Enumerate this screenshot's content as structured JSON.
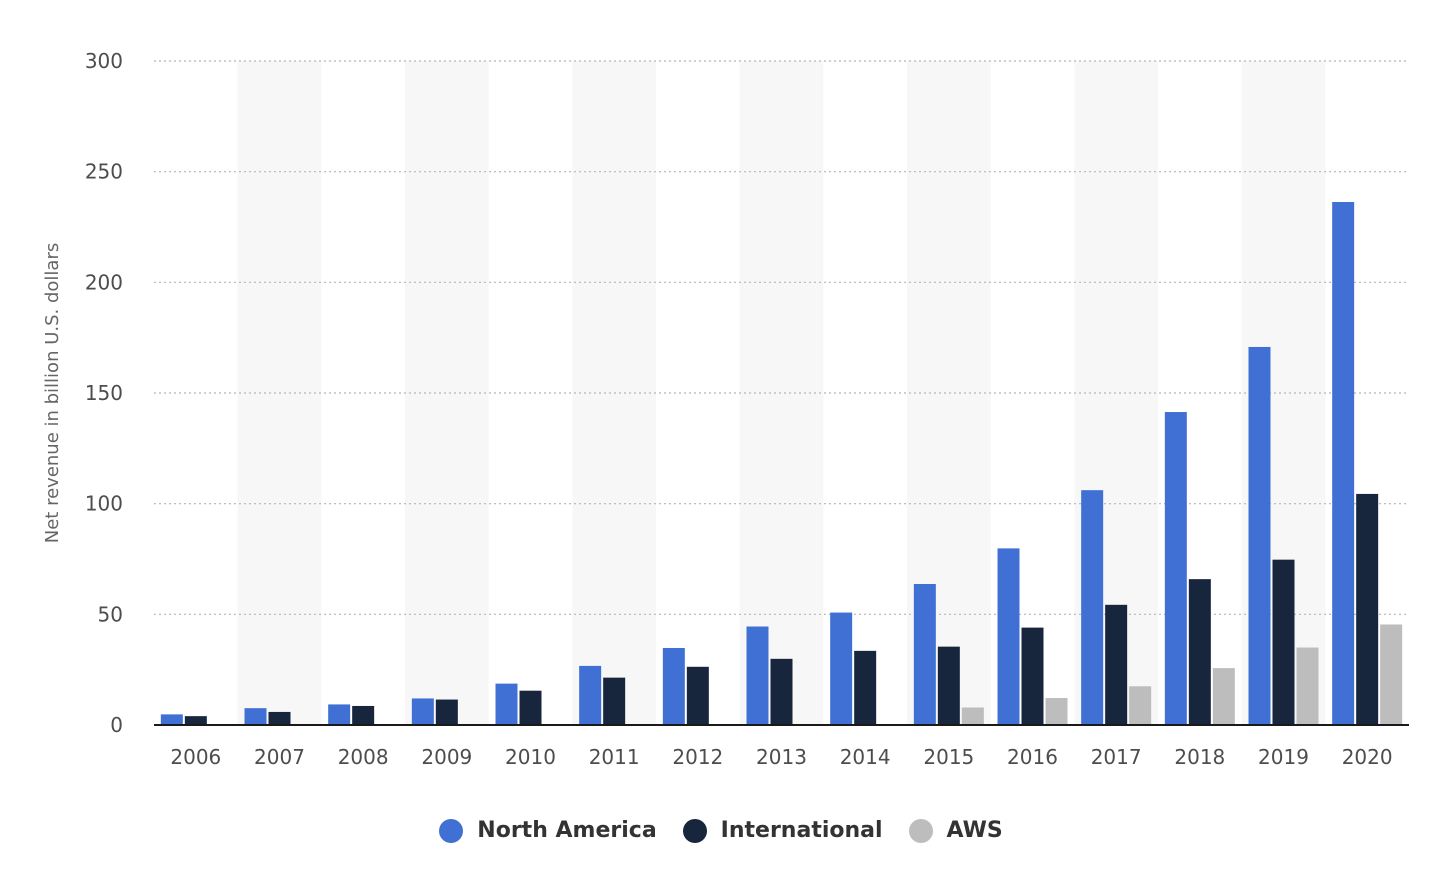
{
  "chart_data": {
    "type": "bar",
    "categories": [
      "2006",
      "2007",
      "2008",
      "2009",
      "2010",
      "2011",
      "2012",
      "2013",
      "2014",
      "2015",
      "2016",
      "2017",
      "2018",
      "2019",
      "2020"
    ],
    "series": [
      {
        "name": "North America",
        "color": "#4070d4",
        "values": [
          4.8,
          7.6,
          9.3,
          12.0,
          18.7,
          26.7,
          34.8,
          44.5,
          50.8,
          63.7,
          79.8,
          106.1,
          141.4,
          170.8,
          236.3
        ]
      },
      {
        "name": "International",
        "color": "#17263d",
        "values": [
          4.0,
          5.9,
          8.6,
          11.5,
          15.5,
          21.4,
          26.3,
          29.9,
          33.5,
          35.4,
          44.0,
          54.3,
          65.9,
          74.7,
          104.4
        ]
      },
      {
        "name": "AWS",
        "color": "#bdbdbd",
        "values": [
          null,
          null,
          null,
          null,
          null,
          null,
          null,
          null,
          null,
          7.9,
          12.2,
          17.5,
          25.7,
          35.0,
          45.4
        ]
      }
    ],
    "ylabel": "Net revenue in billion U.S. dollars",
    "xlabel": "",
    "ylim": [
      0,
      300
    ],
    "yticks": [
      "0",
      "50",
      "100",
      "150",
      "200",
      "250",
      "300"
    ],
    "grid": true,
    "legend_position": "bottom-center"
  }
}
